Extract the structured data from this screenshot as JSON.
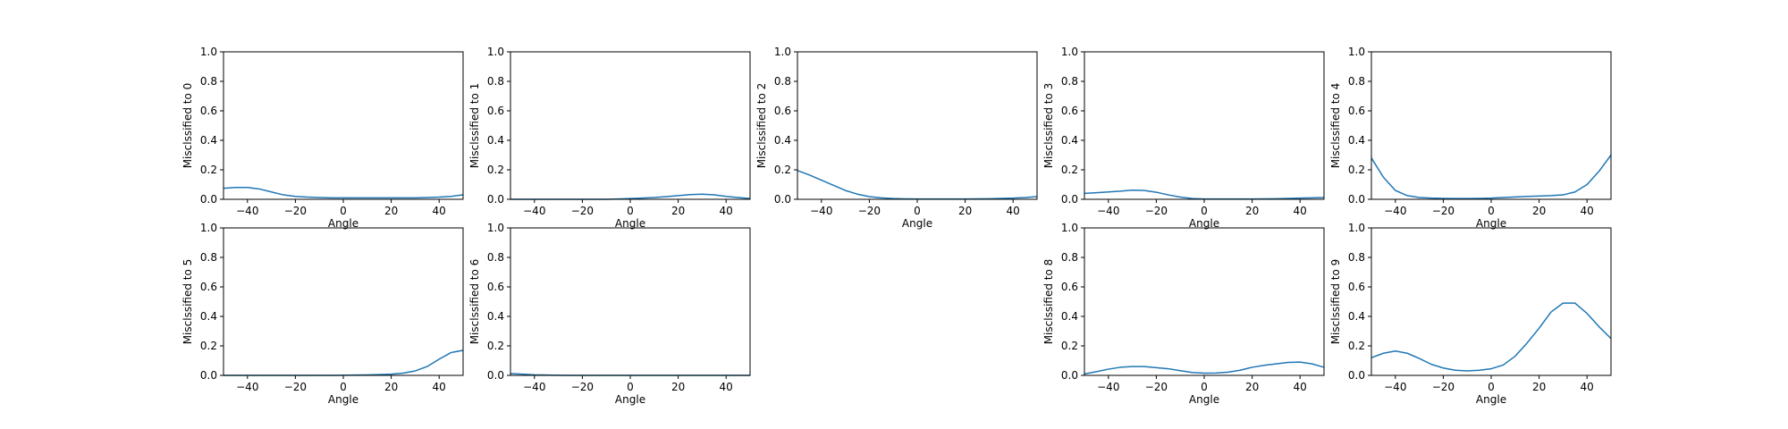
{
  "colors": {
    "line": "#1f77b4",
    "axes": "#000000",
    "background": "#ffffff"
  },
  "chart_data": [
    {
      "type": "line",
      "xlabel": "Angle",
      "ylabel": "Misclssified to 0",
      "xlim": [
        -50,
        50
      ],
      "ylim": [
        0,
        1
      ],
      "xticks": [
        "−40",
        "−20",
        "0",
        "20",
        "40"
      ],
      "yticks": [
        "0.0",
        "0.2",
        "0.4",
        "0.6",
        "0.8",
        "1.0"
      ],
      "x": [
        -50,
        -45,
        -40,
        -35,
        -30,
        -25,
        -20,
        -15,
        -10,
        -5,
        0,
        5,
        10,
        15,
        20,
        25,
        30,
        35,
        40,
        45,
        50
      ],
      "y": [
        0.075,
        0.08,
        0.08,
        0.07,
        0.05,
        0.03,
        0.02,
        0.015,
        0.012,
        0.01,
        0.01,
        0.01,
        0.01,
        0.01,
        0.01,
        0.01,
        0.01,
        0.012,
        0.015,
        0.02,
        0.03
      ]
    },
    {
      "type": "line",
      "xlabel": "Angle",
      "ylabel": "Misclssified to 1",
      "xlim": [
        -50,
        50
      ],
      "ylim": [
        0,
        1
      ],
      "xticks": [
        "−40",
        "−20",
        "0",
        "20",
        "40"
      ],
      "yticks": [
        "0.0",
        "0.2",
        "0.4",
        "0.6",
        "0.8",
        "1.0"
      ],
      "x": [
        -50,
        -45,
        -40,
        -35,
        -30,
        -25,
        -20,
        -15,
        -10,
        -5,
        0,
        5,
        10,
        15,
        20,
        25,
        30,
        35,
        40,
        45,
        50
      ],
      "y": [
        0.0,
        0.0,
        0.0,
        0.0,
        0.0,
        0.0,
        0.0,
        0.0,
        0.0,
        0.002,
        0.005,
        0.008,
        0.012,
        0.018,
        0.025,
        0.032,
        0.035,
        0.03,
        0.02,
        0.012,
        0.005
      ]
    },
    {
      "type": "line",
      "xlabel": "Angle",
      "ylabel": "Misclssified to 2",
      "xlim": [
        -50,
        50
      ],
      "ylim": [
        0,
        1
      ],
      "xticks": [
        "−40",
        "−20",
        "0",
        "20",
        "40"
      ],
      "yticks": [
        "0.0",
        "0.2",
        "0.4",
        "0.6",
        "0.8",
        "1.0"
      ],
      "x": [
        -50,
        -45,
        -40,
        -35,
        -30,
        -25,
        -20,
        -15,
        -10,
        -5,
        0,
        5,
        10,
        15,
        20,
        25,
        30,
        35,
        40,
        45,
        50
      ],
      "y": [
        0.195,
        0.165,
        0.13,
        0.095,
        0.06,
        0.035,
        0.018,
        0.01,
        0.005,
        0.003,
        0.002,
        0.002,
        0.002,
        0.002,
        0.002,
        0.003,
        0.004,
        0.006,
        0.008,
        0.012,
        0.018
      ]
    },
    {
      "type": "line",
      "xlabel": "Angle",
      "ylabel": "Misclssified to 3",
      "xlim": [
        -50,
        50
      ],
      "ylim": [
        0,
        1
      ],
      "xticks": [
        "−40",
        "−20",
        "0",
        "20",
        "40"
      ],
      "yticks": [
        "0.0",
        "0.2",
        "0.4",
        "0.6",
        "0.8",
        "1.0"
      ],
      "x": [
        -50,
        -45,
        -40,
        -35,
        -30,
        -25,
        -20,
        -15,
        -10,
        -5,
        0,
        5,
        10,
        15,
        20,
        25,
        30,
        35,
        40,
        45,
        50
      ],
      "y": [
        0.04,
        0.045,
        0.05,
        0.055,
        0.062,
        0.06,
        0.048,
        0.03,
        0.015,
        0.005,
        0.002,
        0.002,
        0.002,
        0.002,
        0.002,
        0.003,
        0.004,
        0.006,
        0.008,
        0.01,
        0.012
      ]
    },
    {
      "type": "line",
      "xlabel": "Angle",
      "ylabel": "Misclssified to 4",
      "xlim": [
        -50,
        50
      ],
      "ylim": [
        0,
        1
      ],
      "xticks": [
        "−40",
        "−20",
        "0",
        "20",
        "40"
      ],
      "yticks": [
        "0.0",
        "0.2",
        "0.4",
        "0.6",
        "0.8",
        "1.0"
      ],
      "x": [
        -50,
        -45,
        -40,
        -35,
        -30,
        -25,
        -20,
        -15,
        -10,
        -5,
        0,
        5,
        10,
        15,
        20,
        25,
        30,
        35,
        40,
        45,
        50
      ],
      "y": [
        0.28,
        0.15,
        0.06,
        0.025,
        0.012,
        0.008,
        0.006,
        0.005,
        0.005,
        0.006,
        0.008,
        0.012,
        0.016,
        0.02,
        0.022,
        0.025,
        0.03,
        0.05,
        0.1,
        0.19,
        0.3
      ]
    },
    {
      "type": "line",
      "xlabel": "Angle",
      "ylabel": "Misclssified to 5",
      "xlim": [
        -50,
        50
      ],
      "ylim": [
        0,
        1
      ],
      "xticks": [
        "−40",
        "−20",
        "0",
        "20",
        "40"
      ],
      "yticks": [
        "0.0",
        "0.2",
        "0.4",
        "0.6",
        "0.8",
        "1.0"
      ],
      "x": [
        -50,
        -45,
        -40,
        -35,
        -30,
        -25,
        -20,
        -15,
        -10,
        -5,
        0,
        5,
        10,
        15,
        20,
        25,
        30,
        35,
        40,
        45,
        50
      ],
      "y": [
        0.0,
        0.0,
        0.0,
        0.0,
        0.0,
        0.0,
        0.0,
        0.0,
        0.0,
        0.0,
        0.001,
        0.002,
        0.003,
        0.005,
        0.008,
        0.015,
        0.03,
        0.06,
        0.11,
        0.155,
        0.17
      ]
    },
    {
      "type": "line",
      "xlabel": "Angle",
      "ylabel": "Misclssified to 6",
      "xlim": [
        -50,
        50
      ],
      "ylim": [
        0,
        1
      ],
      "xticks": [
        "−40",
        "−20",
        "0",
        "20",
        "40"
      ],
      "yticks": [
        "0.0",
        "0.2",
        "0.4",
        "0.6",
        "0.8",
        "1.0"
      ],
      "x": [
        -50,
        -45,
        -40,
        -35,
        -30,
        -25,
        -20,
        -15,
        -10,
        -5,
        0,
        5,
        10,
        15,
        20,
        25,
        30,
        35,
        40,
        45,
        50
      ],
      "y": [
        0.012,
        0.008,
        0.004,
        0.002,
        0.001,
        0.0,
        0.0,
        0.0,
        0.0,
        0.0,
        0.0,
        0.0,
        0.0,
        0.0,
        0.0,
        0.0,
        0.0,
        0.0,
        0.0,
        0.0,
        0.0
      ]
    },
    null,
    {
      "type": "line",
      "xlabel": "Angle",
      "ylabel": "Misclssified to 8",
      "xlim": [
        -50,
        50
      ],
      "ylim": [
        0,
        1
      ],
      "xticks": [
        "−40",
        "−20",
        "0",
        "20",
        "40"
      ],
      "yticks": [
        "0.0",
        "0.2",
        "0.4",
        "0.6",
        "0.8",
        "1.0"
      ],
      "x": [
        -50,
        -45,
        -40,
        -35,
        -30,
        -25,
        -20,
        -15,
        -10,
        -5,
        0,
        5,
        10,
        15,
        20,
        25,
        30,
        35,
        40,
        45,
        50
      ],
      "y": [
        0.01,
        0.025,
        0.042,
        0.055,
        0.06,
        0.06,
        0.052,
        0.045,
        0.032,
        0.02,
        0.015,
        0.016,
        0.022,
        0.035,
        0.055,
        0.068,
        0.078,
        0.088,
        0.09,
        0.078,
        0.055
      ]
    },
    {
      "type": "line",
      "xlabel": "Angle",
      "ylabel": "Misclssified to 9",
      "xlim": [
        -50,
        50
      ],
      "ylim": [
        0,
        1
      ],
      "xticks": [
        "−40",
        "−20",
        "0",
        "20",
        "40"
      ],
      "yticks": [
        "0.0",
        "0.2",
        "0.4",
        "0.6",
        "0.8",
        "1.0"
      ],
      "x": [
        -50,
        -45,
        -40,
        -35,
        -30,
        -25,
        -20,
        -15,
        -10,
        -5,
        0,
        5,
        10,
        15,
        20,
        25,
        30,
        35,
        40,
        45,
        50
      ],
      "y": [
        0.12,
        0.15,
        0.165,
        0.15,
        0.115,
        0.075,
        0.05,
        0.035,
        0.03,
        0.035,
        0.045,
        0.07,
        0.13,
        0.22,
        0.32,
        0.43,
        0.49,
        0.49,
        0.42,
        0.33,
        0.25
      ]
    }
  ]
}
